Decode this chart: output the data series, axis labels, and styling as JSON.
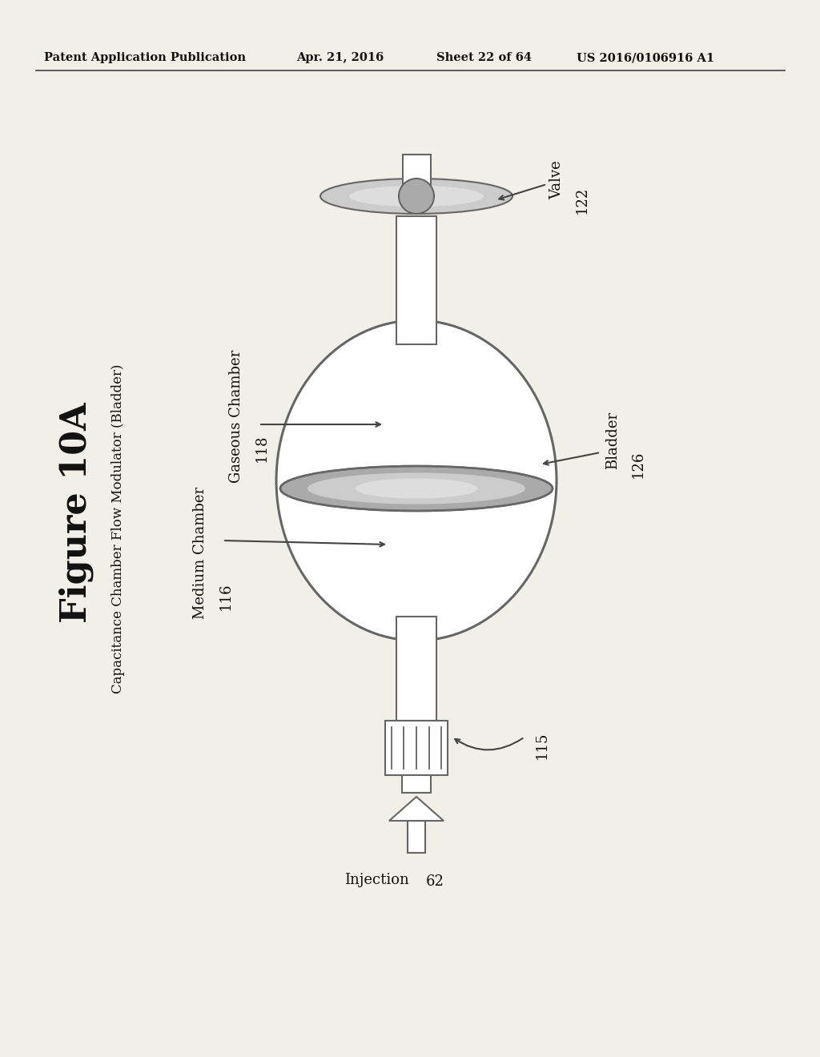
{
  "bg_color": "#f0efe8",
  "header_text": "Patent Application Publication",
  "header_date": "Apr. 21, 2016",
  "header_sheet": "Sheet 22 of 64",
  "header_patent": "US 2016/0106916 A1",
  "figure_label": "Figure 10A",
  "figure_subtitle": "Capacitance Chamber Flow Modulator (Bladder)",
  "labels": {
    "gaseous_chamber": "Gaseous Chamber",
    "gaseous_num": "118",
    "medium_chamber": "Medium Chamber",
    "medium_num": "116",
    "bladder": "Bladder",
    "bladder_num": "126",
    "valve": "Valve",
    "valve_num": "122",
    "injection": "Injection",
    "injection_num": "62",
    "component_num": "115"
  }
}
